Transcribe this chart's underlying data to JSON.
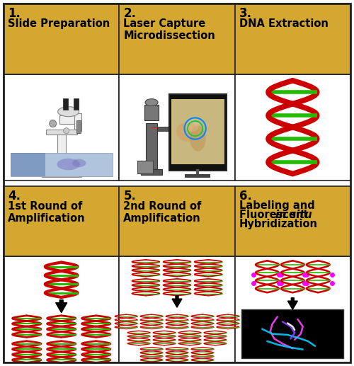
{
  "figsize": [
    5.0,
    5.17
  ],
  "dpi": 100,
  "background_color": "#ffffff",
  "border_color": "#222222",
  "header_bg_color": "#D4A830",
  "header_text_color": "#000000",
  "grid_rows": 2,
  "grid_cols": 3,
  "panels": [
    {
      "number": "1.",
      "title": "Slide Preparation",
      "row": 0,
      "col": 0
    },
    {
      "number": "2.",
      "title": "Laser Capture\nMicrodissection",
      "row": 0,
      "col": 1
    },
    {
      "number": "3.",
      "title": "DNA Extraction",
      "row": 0,
      "col": 2
    },
    {
      "number": "4.",
      "title": "1st Round of\nAmplification",
      "row": 1,
      "col": 0
    },
    {
      "number": "5.",
      "title": "2nd Round of\nAmplification",
      "row": 1,
      "col": 1
    },
    {
      "number": "6.",
      "title": "Labeling and\nFluorescent @in situ@\nHybridization",
      "row": 1,
      "col": 2
    }
  ],
  "header_number_fontsize": 12,
  "header_title_fontsize": 10.5,
  "strand_color": "#CC0000",
  "rung_color1": "#FFD700",
  "rung_color2": "#22BB00"
}
